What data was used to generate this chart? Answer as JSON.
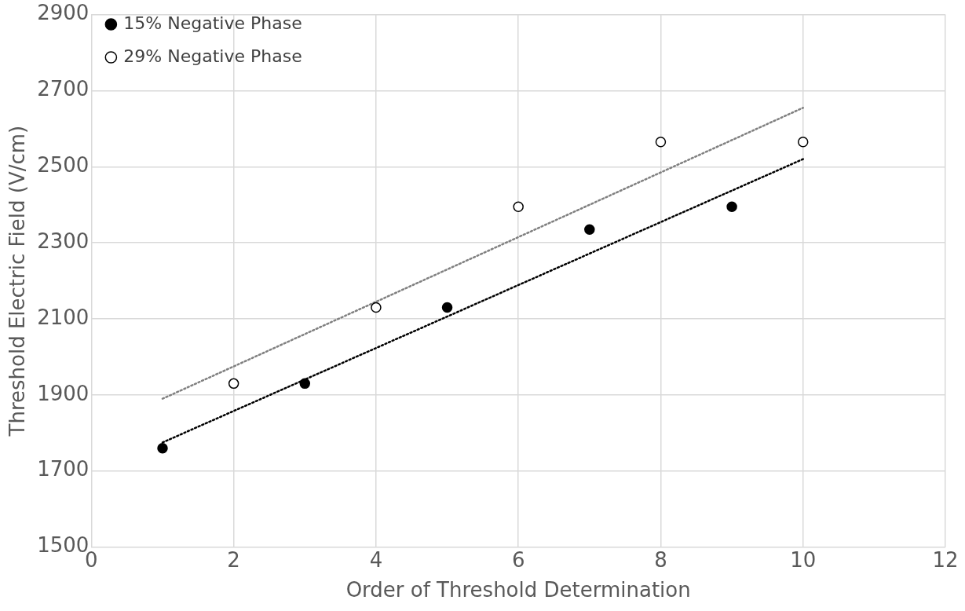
{
  "chart_data": {
    "type": "scatter",
    "xlabel": "Order of Threshold Determination",
    "ylabel": "Threshold Electric Field (V/cm)",
    "xlim": [
      0,
      12
    ],
    "xticks": [
      0,
      2,
      4,
      6,
      8,
      10,
      12
    ],
    "ylim": [
      1500,
      2900
    ],
    "yticks": [
      1500,
      1700,
      1900,
      2100,
      2300,
      2500,
      2700,
      2900
    ],
    "grid": true,
    "legend": "top left",
    "marker": "circle",
    "series": [
      {
        "name": "15% Negative Phase",
        "color": "#000000",
        "x": [
          1,
          3,
          5,
          7,
          9
        ],
        "values": [
          1760,
          1930,
          2130,
          2335,
          2395
        ]
      },
      {
        "name": "29% Negative Phase",
        "color": "#ffffff",
        "x": [
          2,
          4,
          6,
          8,
          10
        ],
        "values": [
          1930,
          2130,
          2395,
          2565,
          2565
        ]
      },
      {
        "type": "line",
        "color": "#000000",
        "line_style": "dotted",
        "marker": "none",
        "x": [
          1,
          10
        ],
        "values": [
          1775,
          2520
        ]
      },
      {
        "type": "line",
        "color": "#808080",
        "line_style": "dotted",
        "marker": "none",
        "x": [
          1,
          10
        ],
        "values": [
          1890,
          2655
        ]
      }
    ]
  }
}
